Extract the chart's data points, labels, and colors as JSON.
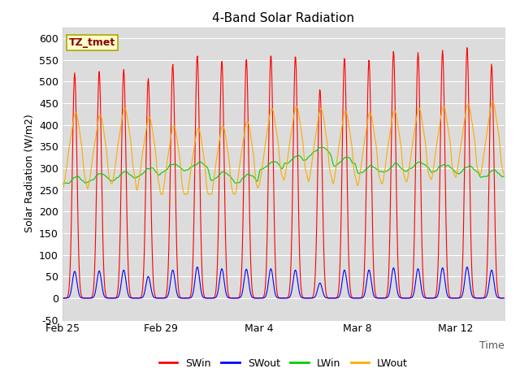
{
  "title": "4-Band Solar Radiation",
  "xlabel": "Time",
  "ylabel": "Solar Radiation (W/m2)",
  "label_box": "TZ_tmet",
  "ylim": [
    -50,
    625
  ],
  "xlim_start": 0,
  "xlim_end": 432,
  "xtick_positions": [
    0,
    96,
    192,
    288,
    384
  ],
  "xtick_labels": [
    "Feb 25",
    "Feb 29",
    "Mar 4",
    "Mar 8",
    "Mar 12"
  ],
  "line_colors": {
    "SWin": "#ff0000",
    "SWout": "#0000ff",
    "LWin": "#00cc00",
    "LWout": "#ffaa00"
  },
  "background_color": "#ffffff",
  "plot_bg_color": "#dcdcdc",
  "grid_color": "#ffffff",
  "title_fontsize": 11,
  "axis_fontsize": 9,
  "tick_fontsize": 9,
  "legend_fontsize": 9,
  "peak_amps_swin": [
    520,
    523,
    528,
    507,
    540,
    560,
    548,
    553,
    562,
    560,
    483,
    555,
    550,
    570,
    567,
    572,
    578
  ],
  "peak_amps_swout": [
    62,
    63,
    65,
    50,
    65,
    72,
    68,
    67,
    68,
    65,
    35,
    65,
    65,
    70,
    68,
    70,
    72
  ]
}
